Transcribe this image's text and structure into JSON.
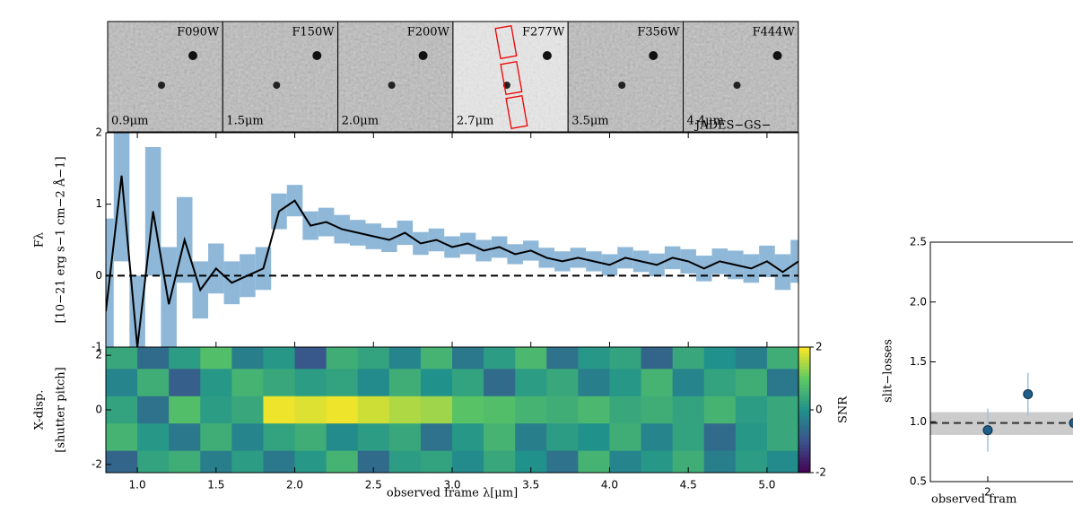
{
  "cutouts": [
    {
      "filter": "F090W",
      "wavelength": "0.9μm"
    },
    {
      "filter": "F150W",
      "wavelength": "1.5μm"
    },
    {
      "filter": "F200W",
      "wavelength": "2.0μm"
    },
    {
      "filter": "F277W",
      "wavelength": "2.7μm"
    },
    {
      "filter": "F356W",
      "wavelength": "3.5μm"
    },
    {
      "filter": "F444W",
      "wavelength": "4.4μm"
    }
  ],
  "chart_data": [
    {
      "type": "line",
      "ylabel": [
        "Fλ",
        "[10−21 erg s−1 cm−2 Å−1]"
      ],
      "x": [
        0.8,
        0.9,
        1.0,
        1.1,
        1.2,
        1.3,
        1.4,
        1.5,
        1.6,
        1.7,
        1.8,
        1.9,
        2.0,
        2.1,
        2.2,
        2.3,
        2.4,
        2.5,
        2.6,
        2.7,
        2.8,
        2.9,
        3.0,
        3.1,
        3.2,
        3.3,
        3.4,
        3.5,
        3.6,
        3.7,
        3.8,
        3.9,
        4.0,
        4.1,
        4.2,
        4.3,
        4.4,
        4.5,
        4.6,
        4.7,
        4.8,
        4.9,
        5.0,
        5.1,
        5.2
      ],
      "series": [
        {
          "color": "#000000",
          "error_color": "#8fb8d8",
          "values": [
            -0.5,
            1.4,
            -1.0,
            0.9,
            -0.4,
            0.5,
            -0.2,
            0.1,
            -0.1,
            0.0,
            0.1,
            0.9,
            1.05,
            0.7,
            0.75,
            0.65,
            0.6,
            0.55,
            0.5,
            0.6,
            0.45,
            0.5,
            0.4,
            0.45,
            0.35,
            0.4,
            0.3,
            0.35,
            0.25,
            0.2,
            0.25,
            0.2,
            0.15,
            0.25,
            0.2,
            0.15,
            0.25,
            0.2,
            0.1,
            0.2,
            0.15,
            0.1,
            0.2,
            0.05,
            0.2
          ],
          "errors": [
            1.3,
            1.2,
            1.0,
            0.9,
            0.8,
            0.6,
            0.4,
            0.35,
            0.3,
            0.3,
            0.3,
            0.25,
            0.22,
            0.2,
            0.2,
            0.2,
            0.18,
            0.18,
            0.17,
            0.17,
            0.16,
            0.16,
            0.15,
            0.15,
            0.15,
            0.15,
            0.14,
            0.14,
            0.14,
            0.14,
            0.14,
            0.14,
            0.15,
            0.15,
            0.15,
            0.16,
            0.16,
            0.17,
            0.18,
            0.18,
            0.2,
            0.2,
            0.22,
            0.25,
            0.3
          ]
        }
      ],
      "reference_line": 0,
      "xlim": [
        0.8,
        5.2
      ],
      "ylim": [
        -1,
        2
      ],
      "yticks": [
        -1,
        0,
        1,
        2
      ]
    },
    {
      "type": "heatmap",
      "ylabel": [
        "X-disp.",
        "[shutter pitch]"
      ],
      "xlabel": "observed frame λ[μm]",
      "x": [
        0.9,
        1.1,
        1.3,
        1.5,
        1.7,
        1.9,
        2.1,
        2.3,
        2.5,
        2.7,
        2.9,
        3.1,
        3.3,
        3.5,
        3.7,
        3.9,
        4.1,
        4.3,
        4.5,
        4.7,
        4.9,
        5.1
      ],
      "y": [
        2,
        1,
        0,
        -1,
        -2
      ],
      "z": [
        [
          0.4,
          -0.6,
          0.2,
          0.8,
          -0.3,
          0.1,
          -0.9,
          0.5,
          0.3,
          -0.2,
          0.6,
          -0.4,
          0.2,
          0.7,
          -0.5,
          0.1,
          0.3,
          -0.7,
          0.4,
          0.0,
          -0.3,
          0.5
        ],
        [
          -0.2,
          0.5,
          -0.8,
          0.1,
          0.6,
          0.4,
          0.2,
          0.3,
          -0.1,
          0.5,
          0.0,
          0.3,
          -0.6,
          0.2,
          0.4,
          -0.3,
          0.1,
          0.6,
          -0.2,
          0.3,
          0.5,
          -0.4
        ],
        [
          0.3,
          -0.5,
          0.8,
          0.2,
          0.4,
          1.9,
          1.8,
          1.9,
          1.7,
          1.5,
          1.4,
          0.9,
          0.8,
          0.6,
          0.5,
          0.7,
          0.4,
          0.5,
          0.3,
          0.6,
          0.2,
          0.4
        ],
        [
          0.6,
          0.1,
          -0.4,
          0.5,
          -0.2,
          0.3,
          0.5,
          -0.1,
          0.2,
          0.4,
          -0.5,
          0.1,
          0.6,
          -0.3,
          0.2,
          0.0,
          0.5,
          -0.2,
          0.3,
          -0.6,
          0.1,
          0.4
        ],
        [
          -0.7,
          0.3,
          0.5,
          -0.3,
          0.2,
          -0.4,
          0.1,
          0.6,
          -0.6,
          0.2,
          0.3,
          -0.1,
          0.4,
          0.0,
          -0.5,
          0.6,
          -0.2,
          0.1,
          0.5,
          -0.3,
          0.2,
          -0.1
        ]
      ],
      "colormap": "viridis",
      "zlim": [
        -2,
        2
      ],
      "zticks": [
        -2,
        0,
        2
      ],
      "colorbar_label": "SNR",
      "xlim": [
        0.8,
        5.2
      ],
      "xticks": [
        {
          "value": 1,
          "label": "1.0"
        },
        1.5,
        {
          "value": 2,
          "label": "2.0"
        },
        2.5,
        {
          "value": 3,
          "label": "3.0"
        },
        3.5,
        {
          "value": 4,
          "label": "4.0"
        },
        4.5,
        {
          "value": 5,
          "label": "5.0"
        }
      ],
      "ylim": [
        -2.3,
        2.3
      ],
      "yticks": [
        -2,
        0,
        2
      ]
    },
    {
      "type": "scatter",
      "title": "JADES−GS−",
      "ylabel": "slit−losses",
      "xlabel": "observed fram",
      "x": [
        2,
        2.7,
        3.5
      ],
      "values": [
        0.93,
        1.23,
        0.99
      ],
      "errors": [
        0.18,
        0.18,
        0.2
      ],
      "color": "#1f5f8b",
      "error_color": "#9cc3e0",
      "fit": 0.99,
      "fit_band": [
        0.89,
        1.08
      ],
      "band_color": "#cccccc",
      "xlim": [
        1,
        5.5
      ],
      "xticks": [
        2
      ],
      "ylim": [
        0.5,
        2.5
      ],
      "yticks": [
        0.5,
        {
          "value": 1,
          "label": "1.0"
        },
        1.5,
        {
          "value": 2,
          "label": "2.0"
        },
        2.5
      ]
    }
  ]
}
